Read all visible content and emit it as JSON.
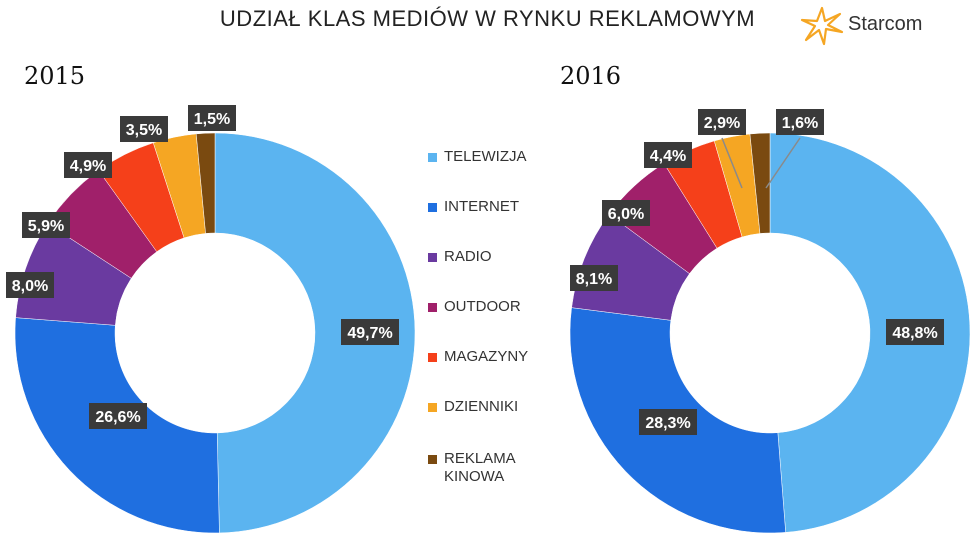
{
  "title": "UDZIAŁ KLAS MEDIÓW  W RYNKU REKLAMOWYM",
  "logo": {
    "text": "Starcom",
    "icon": "starcom-star-logo"
  },
  "legend": [
    {
      "label": "TELEWIZJA",
      "color": "#5bb4f0"
    },
    {
      "label": "INTERNET",
      "color": "#1f6fe0"
    },
    {
      "label": "RADIO",
      "color": "#6a3aa0"
    },
    {
      "label": "OUTDOOR",
      "color": "#a0206a"
    },
    {
      "label": "MAGAZYNY",
      "color": "#f5401a"
    },
    {
      "label": "DZIENNIKI",
      "color": "#f5a623"
    },
    {
      "label": "REKLAMA KINOWA",
      "color": "#7a4a10"
    }
  ],
  "chart_data": [
    {
      "type": "pie",
      "title": "2015",
      "categories": [
        "TELEWIZJA",
        "INTERNET",
        "RADIO",
        "OUTDOOR",
        "MAGAZYNY",
        "DZIENNIKI",
        "REKLAMA KINOWA"
      ],
      "values": [
        49.7,
        26.6,
        8.0,
        5.9,
        4.9,
        3.5,
        1.5
      ],
      "labels": [
        "49,7%",
        "26,6%",
        "8,0%",
        "5,9%",
        "4,9%",
        "3,5%",
        "1,5%"
      ]
    },
    {
      "type": "pie",
      "title": "2016",
      "categories": [
        "TELEWIZJA",
        "INTERNET",
        "RADIO",
        "OUTDOOR",
        "MAGAZYNY",
        "DZIENNIKI",
        "REKLAMA KINOWA"
      ],
      "values": [
        48.8,
        28.3,
        8.1,
        6.0,
        4.4,
        2.9,
        1.6
      ],
      "labels": [
        "48,8%",
        "28,3%",
        "8,1%",
        "6,0%",
        "4,4%",
        "2,9%",
        "1,6%"
      ]
    }
  ]
}
